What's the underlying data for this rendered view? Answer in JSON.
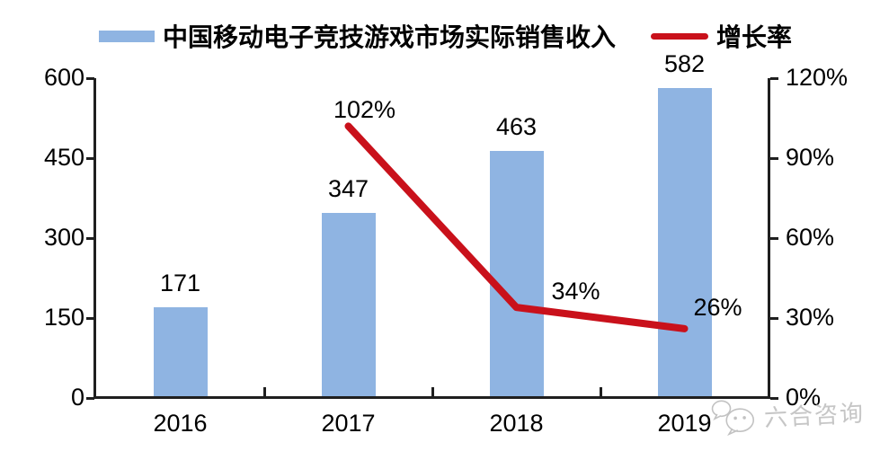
{
  "legend": {
    "bar_label": "中国移动电子竞技游戏市场实际销售收入",
    "line_label": "增长率"
  },
  "watermark": {
    "text": "六合咨询",
    "logo": "wechat-bubbles-icon",
    "color": "#c6c6c6"
  },
  "chart_data": {
    "type": "bar+line combo",
    "title": "",
    "categories": [
      "2016",
      "2017",
      "2018",
      "2019"
    ],
    "series": [
      {
        "name": "中国移动电子竞技游戏市场实际销售收入",
        "type": "bar",
        "axis": "left",
        "values": [
          171,
          347,
          463,
          582
        ],
        "labels": [
          "171",
          "347",
          "463",
          "582"
        ],
        "color": "#8FB4E2"
      },
      {
        "name": "增长率",
        "type": "line",
        "axis": "right",
        "values": [
          null,
          102,
          34,
          26
        ],
        "labels": [
          "",
          "102%",
          "34%",
          "26%"
        ],
        "color": "#C9111B",
        "label_offsets": [
          [
            0,
            0
          ],
          [
            18,
            -18
          ],
          [
            66,
            -18
          ],
          [
            37,
            -24
          ]
        ]
      }
    ],
    "left_axis": {
      "min": 0,
      "max": 600,
      "ticks": [
        "600",
        "450",
        "300",
        "150",
        "0"
      ]
    },
    "right_axis": {
      "min": 0,
      "max": 120,
      "ticks": [
        "120%",
        "90%",
        "60%",
        "30%",
        "0%"
      ],
      "unit": "%"
    },
    "grid": "off",
    "legend_position": "top",
    "axis_color": "#1f1f1f"
  }
}
